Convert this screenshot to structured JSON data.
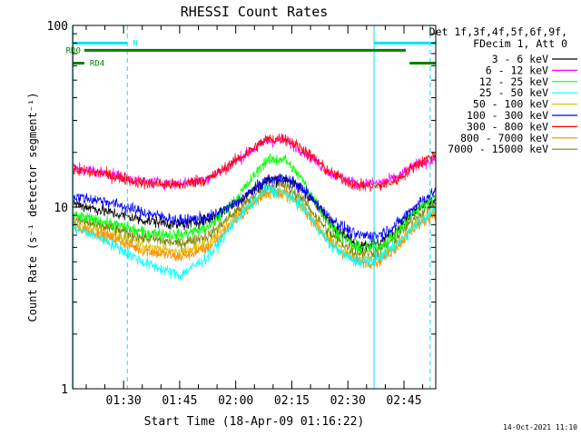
{
  "chart_data": {
    "type": "line",
    "title": "RHESSI Count Rates",
    "xlabel": "Start Time (18-Apr-09 01:16:22)",
    "ylabel": "Count Rate (s⁻¹ detector segment⁻¹)",
    "footer": "14-Oct-2021 11:10",
    "x_start_min": 76.37,
    "x_end_min": 173.5,
    "x_ticks": [
      {
        "min": 90,
        "label": "01:30"
      },
      {
        "min": 105,
        "label": "01:45"
      },
      {
        "min": 120,
        "label": "02:00"
      },
      {
        "min": 135,
        "label": "02:15"
      },
      {
        "min": 150,
        "label": "02:30"
      },
      {
        "min": 165,
        "label": "02:45"
      }
    ],
    "y_scale": "log",
    "ylim": [
      1,
      100
    ],
    "y_ticks": [
      {
        "v": 1,
        "label": "1"
      },
      {
        "v": 10,
        "label": "10"
      },
      {
        "v": 100,
        "label": "100"
      }
    ],
    "legend_header": [
      "Det 1f,3f,4f,5f,6f,9f,",
      "FDecim 1, Att 0"
    ],
    "series": [
      {
        "name": "3 - 6 keV",
        "color": "#000000",
        "points": [
          [
            76.4,
            10.5
          ],
          [
            85,
            9.5
          ],
          [
            95,
            8.5
          ],
          [
            105,
            8.0
          ],
          [
            113,
            8.6
          ],
          [
            120,
            10.5
          ],
          [
            128,
            14.0
          ],
          [
            133,
            14.5
          ],
          [
            138,
            12.5
          ],
          [
            145,
            8.5
          ],
          [
            152,
            6.2
          ],
          [
            158,
            6.3
          ],
          [
            163,
            7.5
          ],
          [
            168,
            9.5
          ],
          [
            173.5,
            11.0
          ]
        ]
      },
      {
        "name": "6 - 12 keV",
        "color": "#ff00ff",
        "points": [
          [
            76.4,
            16.5
          ],
          [
            85,
            15.5
          ],
          [
            95,
            13.8
          ],
          [
            105,
            13.5
          ],
          [
            113,
            14.5
          ],
          [
            120,
            18.0
          ],
          [
            128,
            23.0
          ],
          [
            133,
            23.5
          ],
          [
            138,
            20.5
          ],
          [
            145,
            15.5
          ],
          [
            152,
            13.5
          ],
          [
            158,
            13.5
          ],
          [
            163,
            14.5
          ],
          [
            168,
            17.0
          ],
          [
            173.5,
            18.5
          ]
        ]
      },
      {
        "name": "12 - 25 keV",
        "color": "#00ff00",
        "points": [
          [
            76.4,
            9.0
          ],
          [
            85,
            8.3
          ],
          [
            95,
            7.3
          ],
          [
            105,
            7.0
          ],
          [
            113,
            7.8
          ],
          [
            120,
            11.0
          ],
          [
            128,
            18.0
          ],
          [
            133,
            18.5
          ],
          [
            138,
            14.0
          ],
          [
            145,
            8.0
          ],
          [
            152,
            6.0
          ],
          [
            158,
            6.0
          ],
          [
            163,
            7.2
          ],
          [
            168,
            9.5
          ],
          [
            173.5,
            11.5
          ]
        ]
      },
      {
        "name": "25 - 50 keV",
        "color": "#00ffff",
        "points": [
          [
            76.4,
            7.8
          ],
          [
            85,
            6.6
          ],
          [
            95,
            5.0
          ],
          [
            105,
            4.2
          ],
          [
            113,
            5.4
          ],
          [
            120,
            8.5
          ],
          [
            128,
            12.5
          ],
          [
            133,
            12.0
          ],
          [
            138,
            10.0
          ],
          [
            145,
            6.3
          ],
          [
            152,
            5.0
          ],
          [
            158,
            5.2
          ],
          [
            163,
            6.2
          ],
          [
            168,
            8.0
          ],
          [
            173.5,
            9.8
          ]
        ]
      },
      {
        "name": "50 - 100 keV",
        "color": "#e0c000",
        "points": [
          [
            76.4,
            8.0
          ],
          [
            85,
            7.3
          ],
          [
            95,
            6.2
          ],
          [
            105,
            5.6
          ],
          [
            113,
            6.3
          ],
          [
            120,
            9.0
          ],
          [
            128,
            12.0
          ],
          [
            133,
            11.8
          ],
          [
            138,
            10.0
          ],
          [
            145,
            6.6
          ],
          [
            152,
            5.2
          ],
          [
            158,
            5.3
          ],
          [
            163,
            6.2
          ],
          [
            168,
            8.0
          ],
          [
            173.5,
            9.5
          ]
        ]
      },
      {
        "name": "100 - 300 keV",
        "color": "#0000ff",
        "points": [
          [
            76.4,
            11.5
          ],
          [
            85,
            10.8
          ],
          [
            95,
            9.4
          ],
          [
            105,
            8.4
          ],
          [
            113,
            8.8
          ],
          [
            120,
            10.5
          ],
          [
            128,
            14.0
          ],
          [
            133,
            14.5
          ],
          [
            138,
            12.6
          ],
          [
            145,
            8.8
          ],
          [
            152,
            7.0
          ],
          [
            158,
            7.0
          ],
          [
            163,
            8.0
          ],
          [
            168,
            10.2
          ],
          [
            173.5,
            12.3
          ]
        ]
      },
      {
        "name": "300 - 800 keV",
        "color": "#ff0000",
        "points": [
          [
            76.4,
            16.0
          ],
          [
            85,
            15.2
          ],
          [
            95,
            13.6
          ],
          [
            105,
            13.2
          ],
          [
            113,
            14.4
          ],
          [
            120,
            18.0
          ],
          [
            128,
            23.5
          ],
          [
            133,
            24.0
          ],
          [
            138,
            21.0
          ],
          [
            145,
            15.6
          ],
          [
            152,
            13.2
          ],
          [
            158,
            13.0
          ],
          [
            163,
            14.0
          ],
          [
            168,
            17.0
          ],
          [
            173.5,
            19.5
          ]
        ]
      },
      {
        "name": "800 - 7000 keV",
        "color": "#ff8c00",
        "points": [
          [
            76.4,
            7.8
          ],
          [
            85,
            7.0
          ],
          [
            95,
            5.8
          ],
          [
            105,
            5.3
          ],
          [
            113,
            6.0
          ],
          [
            120,
            8.5
          ],
          [
            128,
            12.0
          ],
          [
            133,
            12.2
          ],
          [
            138,
            10.0
          ],
          [
            145,
            6.4
          ],
          [
            152,
            5.0
          ],
          [
            158,
            5.0
          ],
          [
            163,
            6.0
          ],
          [
            168,
            7.8
          ],
          [
            173.5,
            9.3
          ]
        ]
      },
      {
        "name": "7000 - 15000 keV",
        "color": "#808000",
        "points": [
          [
            76.4,
            8.5
          ],
          [
            85,
            7.8
          ],
          [
            95,
            6.8
          ],
          [
            105,
            6.3
          ],
          [
            113,
            7.0
          ],
          [
            120,
            9.5
          ],
          [
            128,
            13.0
          ],
          [
            133,
            13.2
          ],
          [
            138,
            11.0
          ],
          [
            145,
            7.2
          ],
          [
            152,
            5.6
          ],
          [
            158,
            5.7
          ],
          [
            163,
            6.8
          ],
          [
            168,
            8.8
          ],
          [
            173.5,
            10.5
          ]
        ]
      }
    ],
    "attenuator_bars": [
      {
        "label": "N",
        "color": "#00e5ee",
        "segments": [
          [
            76.4,
            91.0
          ],
          [
            157.0,
            173.5
          ]
        ],
        "level": 80
      },
      {
        "label": "RD0",
        "color": "#008000",
        "segments": [
          [
            79.5,
            165.5
          ]
        ],
        "level": 73
      },
      {
        "label": "RD4",
        "color": "#008000",
        "segments": [
          [
            76.4,
            79.5
          ],
          [
            166.5,
            173.5
          ]
        ],
        "level": 62
      }
    ],
    "vertical_lines": [
      {
        "min": 76.5,
        "style": "solid",
        "color": "#00e5ee"
      },
      {
        "min": 91.0,
        "style": "dashed",
        "color": "#00e5ee"
      },
      {
        "min": 157.0,
        "style": "solid",
        "color": "#00e5ee"
      },
      {
        "min": 172.0,
        "style": "dashed",
        "color": "#00e5ee"
      }
    ]
  }
}
